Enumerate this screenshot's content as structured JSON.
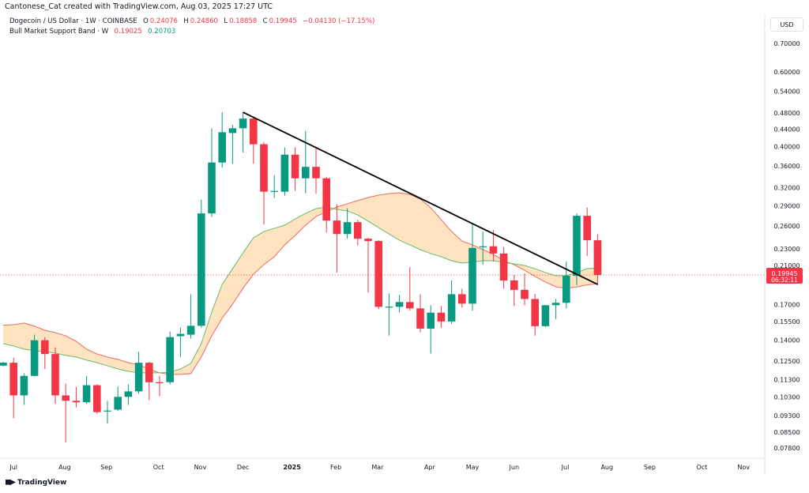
{
  "header": {
    "credit": "Cantonese_Cat created with TradingView.com, Aug 03, 2025 17:27 UTC",
    "symbol": "Dogecoin / US Dollar · 1W · COINBASE",
    "o_label": "O",
    "o": "0.24076",
    "h_label": "H",
    "h": "0.24860",
    "l_label": "L",
    "l": "0.18858",
    "c_label": "C",
    "c": "0.19945",
    "change": "−0.04130 (−17.15%)",
    "indicator": "Bull Market Support Band · W",
    "ind_val1": "0.19025",
    "ind_val2": "0.20703"
  },
  "currency": "USD",
  "brand": "TradingView",
  "colors": {
    "up": "#089981",
    "down": "#f23645",
    "band_fill": "#fde3c0",
    "band_upper_line": "#ef6a5f",
    "band_lower_line": "#66bb6a",
    "trendline": "#000000"
  },
  "price_label": {
    "value": "0.19945",
    "countdown": "06:32:11"
  },
  "chart_data": {
    "type": "candlestick",
    "scale": "log",
    "grid": false,
    "interval": "1W",
    "ylim": [
      0.075,
      0.72
    ],
    "y_ticks": [
      "0.70000",
      "0.60000",
      "0.54000",
      "0.48000",
      "0.44000",
      "0.40000",
      "0.36000",
      "0.32000",
      "0.29000",
      "0.26000",
      "0.23000",
      "0.21000",
      "0.17000",
      "0.15500",
      "0.14000",
      "0.12500",
      "0.11300",
      "0.10300",
      "0.09300",
      "0.08500",
      "0.07800"
    ],
    "x_ticks": [
      "Jul",
      "Aug",
      "Sep",
      "Oct",
      "Nov",
      "Dec",
      "2025",
      "Feb",
      "Mar",
      "Apr",
      "May",
      "Jun",
      "Jul",
      "Aug",
      "Sep",
      "Oct",
      "Nov"
    ],
    "candles": [
      [
        "2024-06-24",
        0.122,
        0.1245,
        0.1215,
        0.124
      ],
      [
        "2024-07-01",
        0.1239,
        0.1272,
        0.0917,
        0.1038
      ],
      [
        "2024-07-08",
        0.1038,
        0.1169,
        0.0986,
        0.1154
      ],
      [
        "2024-07-15",
        0.1154,
        0.1443,
        0.115,
        0.14
      ],
      [
        "2024-07-22",
        0.14,
        0.1424,
        0.1198,
        0.1299
      ],
      [
        "2024-07-29",
        0.1299,
        0.1347,
        0.0991,
        0.1038
      ],
      [
        "2024-08-05",
        0.1038,
        0.1106,
        0.0804,
        0.1008
      ],
      [
        "2024-08-12",
        0.1008,
        0.1088,
        0.0973,
        0.1
      ],
      [
        "2024-08-19",
        0.1,
        0.1154,
        0.0991,
        0.1097
      ],
      [
        "2024-08-26",
        0.1097,
        0.1102,
        0.094,
        0.0948
      ],
      [
        "2024-09-02",
        0.0952,
        0.1008,
        0.0891,
        0.0956
      ],
      [
        "2024-09-09",
        0.0961,
        0.1088,
        0.0955,
        0.103
      ],
      [
        "2024-09-16",
        0.103,
        0.1102,
        0.0986,
        0.1061
      ],
      [
        "2024-09-23",
        0.1061,
        0.1316,
        0.1047,
        0.1239
      ],
      [
        "2024-09-30",
        0.1239,
        0.1245,
        0.1012,
        0.1115
      ],
      [
        "2024-10-07",
        0.1115,
        0.1154,
        0.1034,
        0.1111
      ],
      [
        "2024-10-14",
        0.1115,
        0.1468,
        0.1102,
        0.1424
      ],
      [
        "2024-10-21",
        0.1431,
        0.15,
        0.1277,
        0.1449
      ],
      [
        "2024-10-28",
        0.1443,
        0.1797,
        0.1412,
        0.1514
      ],
      [
        "2024-11-04",
        0.1514,
        0.3001,
        0.15,
        0.2785
      ],
      [
        "2024-11-11",
        0.2785,
        0.4419,
        0.2732,
        0.367
      ],
      [
        "2024-11-18",
        0.367,
        0.4821,
        0.3569,
        0.4325
      ],
      [
        "2024-11-25",
        0.4306,
        0.45,
        0.3646,
        0.4419
      ],
      [
        "2024-12-02",
        0.4419,
        0.4821,
        0.3873,
        0.4658
      ],
      [
        "2024-12-09",
        0.4658,
        0.47,
        0.3646,
        0.4052
      ],
      [
        "2024-12-16",
        0.4052,
        0.41,
        0.2622,
        0.3133
      ],
      [
        "2024-12-23",
        0.3133,
        0.3428,
        0.3028,
        0.3146
      ],
      [
        "2024-12-30",
        0.3133,
        0.3983,
        0.3067,
        0.383
      ],
      [
        "2025-01-06",
        0.383,
        0.3983,
        0.3146,
        0.3369
      ],
      [
        "2025-01-13",
        0.3369,
        0.4355,
        0.3106,
        0.3585
      ],
      [
        "2025-01-20",
        0.3585,
        0.3983,
        0.31,
        0.3369
      ],
      [
        "2025-01-27",
        0.3369,
        0.3398,
        0.2512,
        0.2679
      ],
      [
        "2025-02-03",
        0.2679,
        0.2926,
        0.2021,
        0.249
      ],
      [
        "2025-02-10",
        0.249,
        0.2865,
        0.2428,
        0.2656
      ],
      [
        "2025-02-17",
        0.2656,
        0.269,
        0.234,
        0.2428
      ],
      [
        "2025-02-24",
        0.2428,
        0.244,
        0.1813,
        0.2398
      ],
      [
        "2025-03-03",
        0.2398,
        0.241,
        0.1657,
        0.1678
      ],
      [
        "2025-03-10",
        0.1678,
        0.1805,
        0.1436,
        0.168
      ],
      [
        "2025-03-17",
        0.1678,
        0.179,
        0.1629,
        0.1722
      ],
      [
        "2025-03-24",
        0.1722,
        0.2082,
        0.1643,
        0.1664
      ],
      [
        "2025-03-31",
        0.1664,
        0.1797,
        0.1461,
        0.1491
      ],
      [
        "2025-04-07",
        0.1491,
        0.1693,
        0.1302,
        0.1626
      ],
      [
        "2025-04-14",
        0.1626,
        0.1686,
        0.1498,
        0.155
      ],
      [
        "2025-04-21",
        0.155,
        0.1936,
        0.153,
        0.1797
      ],
      [
        "2025-04-28",
        0.1797,
        0.185,
        0.1671,
        0.1707
      ],
      [
        "2025-05-05",
        0.1707,
        0.2622,
        0.1643,
        0.231
      ],
      [
        "2025-05-12",
        0.232,
        0.2523,
        0.2109,
        0.233
      ],
      [
        "2025-05-19",
        0.233,
        0.2545,
        0.2145,
        0.2241
      ],
      [
        "2025-05-26",
        0.2241,
        0.232,
        0.1853,
        0.1936
      ],
      [
        "2025-06-02",
        0.1936,
        0.1995,
        0.1686,
        0.184
      ],
      [
        "2025-06-09",
        0.184,
        0.2012,
        0.1693,
        0.1751
      ],
      [
        "2025-06-16",
        0.1751,
        0.18,
        0.1434,
        0.1511
      ],
      [
        "2025-06-23",
        0.1511,
        0.1693,
        0.1505,
        0.1693
      ],
      [
        "2025-06-30",
        0.1693,
        0.1751,
        0.157,
        0.1715
      ],
      [
        "2025-07-07",
        0.1715,
        0.2145,
        0.1664,
        0.1986
      ],
      [
        "2025-07-14",
        0.1986,
        0.2785,
        0.1888,
        0.2749
      ],
      [
        "2025-07-21",
        0.2749,
        0.2876,
        0.2212,
        0.2408
      ],
      [
        "2025-07-28",
        0.24076,
        0.2486,
        0.18858,
        0.19945
      ]
    ],
    "band_upper": [
      0.1518,
      0.1524,
      0.1537,
      0.1511,
      0.1478,
      0.1459,
      0.1434,
      0.1392,
      0.1334,
      0.13,
      0.1278,
      0.1262,
      0.124,
      0.1225,
      0.1198,
      0.1173,
      0.1163,
      0.1163,
      0.1168,
      0.1278,
      0.1434,
      0.1577,
      0.1703,
      0.1855,
      0.2003,
      0.2109,
      0.2202,
      0.2348,
      0.2471,
      0.2613,
      0.2738,
      0.281,
      0.2884,
      0.2934,
      0.2986,
      0.3036,
      0.3075,
      0.3101,
      0.3115,
      0.3088,
      0.301,
      0.2872,
      0.2693,
      0.2524,
      0.2398,
      0.2348,
      0.2289,
      0.223,
      0.2155,
      0.2109,
      0.2046,
      0.1978,
      0.192,
      0.1871,
      0.1855,
      0.187,
      0.189,
      0.19025
    ],
    "band_lower": [
      0.1375,
      0.1357,
      0.1334,
      0.1323,
      0.1317,
      0.1306,
      0.1289,
      0.1278,
      0.1257,
      0.124,
      0.1219,
      0.1198,
      0.1183,
      0.1173,
      0.1173,
      0.1173,
      0.1178,
      0.1198,
      0.1235,
      0.1375,
      0.1631,
      0.1895,
      0.2064,
      0.2249,
      0.244,
      0.2524,
      0.2568,
      0.2613,
      0.2704,
      0.2786,
      0.2859,
      0.2884,
      0.2847,
      0.2823,
      0.2762,
      0.267,
      0.2579,
      0.2492,
      0.2408,
      0.2348,
      0.2289,
      0.224,
      0.2202,
      0.2155,
      0.2127,
      0.2136,
      0.2155,
      0.2155,
      0.2136,
      0.2118,
      0.21,
      0.2064,
      0.2021,
      0.1986,
      0.1986,
      0.2021,
      0.2064,
      0.20703
    ],
    "trendline": [
      [
        "2024-12-02",
        0.4821
      ],
      [
        "2025-07-28",
        0.1895
      ]
    ]
  }
}
